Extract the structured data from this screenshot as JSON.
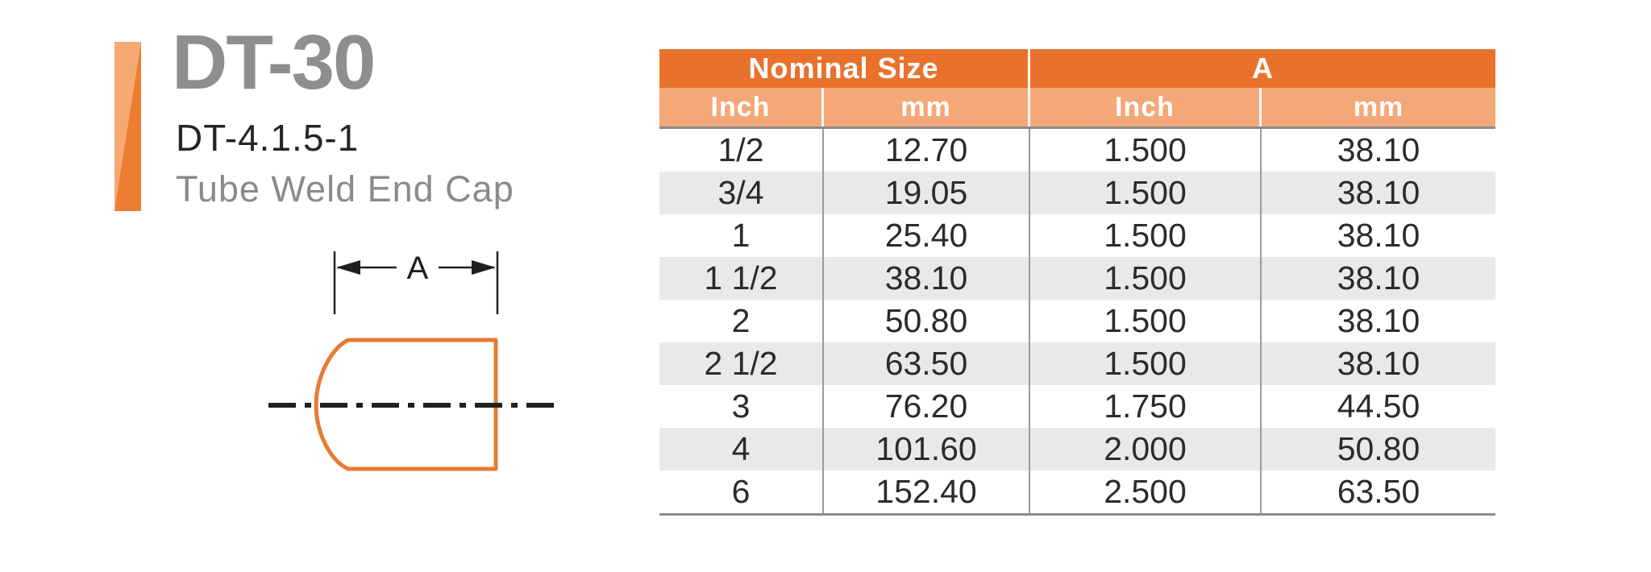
{
  "product": {
    "model": "DT-30",
    "part_number": "DT-4.1.5-1",
    "description": "Tube Weld End Cap"
  },
  "diagram": {
    "dimension_label": "A"
  },
  "table": {
    "column_groups": [
      {
        "label": "Nominal Size"
      },
      {
        "label": "A"
      }
    ],
    "sub_headers": [
      "Inch",
      "mm",
      "Inch",
      "mm"
    ],
    "rows": [
      [
        "1/2",
        "12.70",
        "1.500",
        "38.10"
      ],
      [
        "3/4",
        "19.05",
        "1.500",
        "38.10"
      ],
      [
        "1",
        "25.40",
        "1.500",
        "38.10"
      ],
      [
        "1 1/2",
        "38.10",
        "1.500",
        "38.10"
      ],
      [
        "2",
        "50.80",
        "1.500",
        "38.10"
      ],
      [
        "2 1/2",
        "63.50",
        "1.500",
        "38.10"
      ],
      [
        "3",
        "76.20",
        "1.750",
        "44.50"
      ],
      [
        "4",
        "101.60",
        "2.000",
        "50.80"
      ],
      [
        "6",
        "152.40",
        "2.500",
        "63.50"
      ]
    ]
  },
  "colors": {
    "header_dark_orange": "#E8722C",
    "header_light_orange": "#F4A878",
    "brand_bar_light": "#F6A972",
    "brand_bar_dark": "#ED7D31",
    "row_alternate_gray": "#E9E9E9",
    "grid_line_gray": "#9A9A9A",
    "heavy_line_gray": "#8C8C8C",
    "drawing_outline_orange": "#E87A33",
    "title_gray": "#8E8E8E",
    "text_dark": "#2B2B2B"
  }
}
